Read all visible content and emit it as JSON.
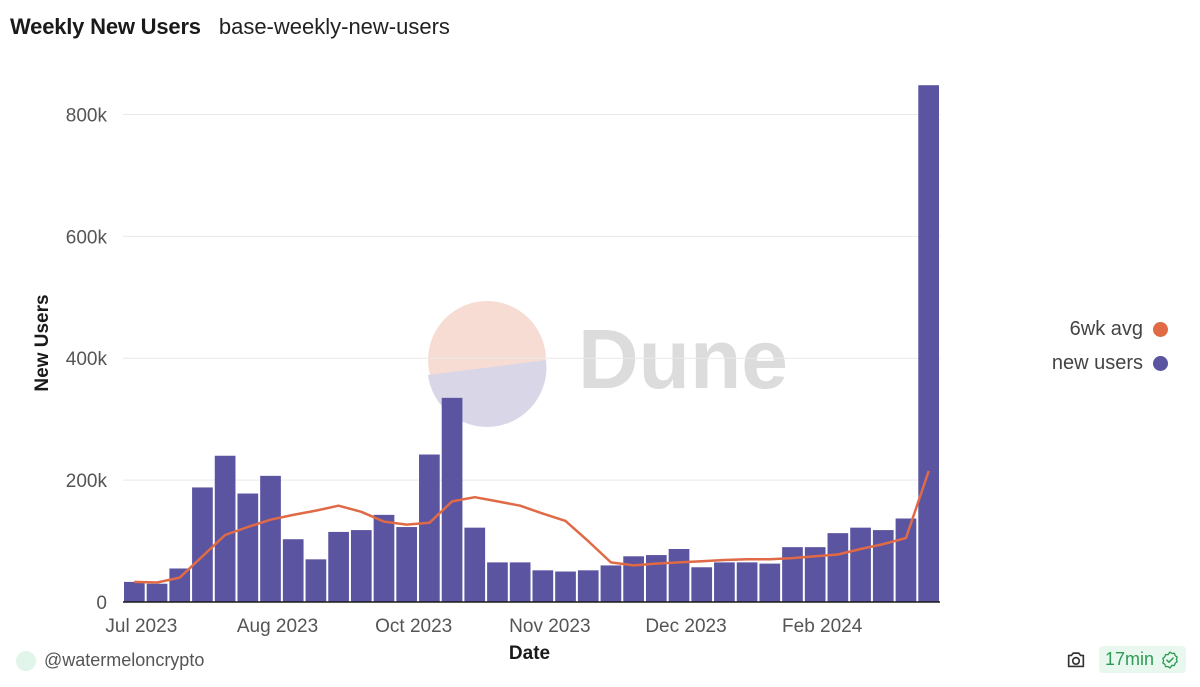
{
  "header": {
    "title": "Weekly New Users",
    "query_name": "base-weekly-new-users"
  },
  "colors": {
    "bar": "#5b54a0",
    "line": "#e06a45",
    "grid": "#e9e9e9",
    "axis": "#1a1a1a",
    "tick_text": "#555555",
    "badge_green": "#2e9a55"
  },
  "watermark": {
    "text": "Dune"
  },
  "footer": {
    "author": "@watermeloncrypto",
    "refresh_age": "17min"
  },
  "chart_data": {
    "type": "bar",
    "title": "Weekly New Users",
    "xlabel": "Date",
    "ylabel": "New Users",
    "ylim": [
      0,
      850000
    ],
    "y_ticks": [
      0,
      200000,
      400000,
      600000,
      800000
    ],
    "y_tick_labels": [
      "0",
      "200k",
      "400k",
      "600k",
      "800k"
    ],
    "x_tick_labels": [
      "Jul 2023",
      "Aug 2023",
      "Oct 2023",
      "Nov 2023",
      "Dec 2023",
      "Feb 2024"
    ],
    "x_tick_index": [
      0.5,
      6.5,
      12.5,
      18.5,
      24.5,
      30.5
    ],
    "legend_position": "right",
    "series": [
      {
        "name": "new users",
        "kind": "bar",
        "values": [
          33000,
          30000,
          55000,
          188000,
          240000,
          178000,
          207000,
          103000,
          70000,
          115000,
          118000,
          143000,
          123000,
          242000,
          335000,
          122000,
          65000,
          65000,
          52000,
          50000,
          52000,
          60000,
          75000,
          77000,
          87000,
          57000,
          65000,
          65000,
          63000,
          90000,
          90000,
          113000,
          122000,
          118000,
          137000,
          848000
        ]
      },
      {
        "name": "6wk avg",
        "kind": "line",
        "values": [
          33000,
          32000,
          40000,
          75000,
          110000,
          123000,
          135000,
          143000,
          150000,
          158000,
          148000,
          132000,
          127000,
          130000,
          165000,
          172000,
          165000,
          158000,
          145000,
          133000,
          100000,
          65000,
          60000,
          63000,
          65000,
          67000,
          69000,
          70000,
          70000,
          72000,
          75000,
          78000,
          87000,
          95000,
          105000,
          215000
        ]
      }
    ]
  }
}
